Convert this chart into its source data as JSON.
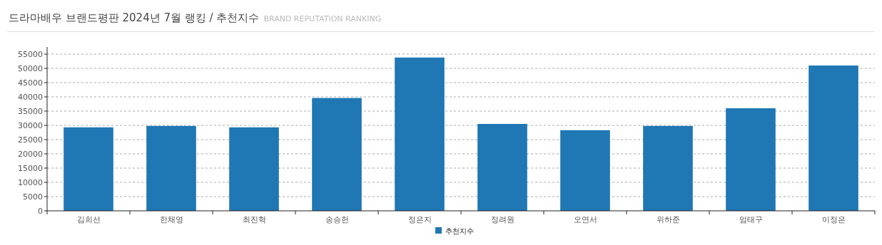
{
  "chart_data": {
    "type": "bar",
    "title": "드라마배우 브랜드평판 2024년 7월 랭킹 / 추천지수",
    "subtitle": "BRAND REPUTATION RANKING",
    "categories": [
      "김희선",
      "한채영",
      "최진혁",
      "송승헌",
      "정은지",
      "정려원",
      "오연서",
      "위하준",
      "엄태구",
      "이정은"
    ],
    "series": [
      {
        "name": "추천지수",
        "color": "#1f77b4",
        "values": [
          29300,
          29800,
          29300,
          39600,
          53800,
          30500,
          28300,
          29800,
          36000,
          51000
        ]
      }
    ],
    "ylim": [
      0,
      57500
    ],
    "yticks": [
      0,
      5000,
      10000,
      15000,
      20000,
      25000,
      30000,
      35000,
      40000,
      45000,
      50000,
      55000
    ],
    "grid": "y",
    "legend": "bottom"
  }
}
